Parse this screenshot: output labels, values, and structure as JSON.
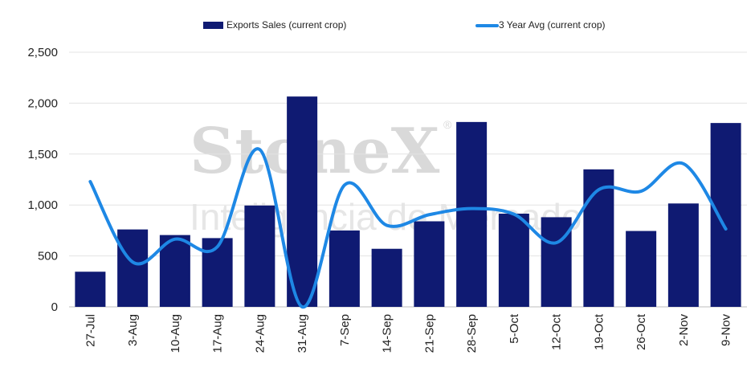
{
  "chart_data": {
    "type": "bar",
    "categories": [
      "27-Jul",
      "3-Aug",
      "10-Aug",
      "17-Aug",
      "24-Aug",
      "31-Aug",
      "7-Sep",
      "14-Sep",
      "21-Sep",
      "28-Sep",
      "5-Oct",
      "12-Oct",
      "19-Oct",
      "26-Oct",
      "2-Nov",
      "9-Nov"
    ],
    "series": [
      {
        "name": "Exports Sales (current crop)",
        "type": "bar",
        "color": "#0f1a72",
        "values": [
          345,
          760,
          705,
          675,
          995,
          2065,
          750,
          570,
          840,
          1815,
          915,
          880,
          1350,
          745,
          1015,
          1805
        ]
      },
      {
        "name": "3 Year Avg (current crop)",
        "type": "line",
        "color": "#1e88e5",
        "values": [
          1230,
          440,
          665,
          590,
          1545,
          0,
          1195,
          800,
          905,
          965,
          910,
          630,
          1150,
          1135,
          1405,
          765
        ]
      }
    ],
    "ylim": [
      0,
      2500
    ],
    "yticks": [
      "0",
      "500",
      "1,000",
      "1,500",
      "2,000",
      "2,500"
    ],
    "ytick_values": [
      0,
      500,
      1000,
      1500,
      2000,
      2500
    ],
    "grid": true,
    "legend": "top-center",
    "title": "",
    "xlabel": "",
    "ylabel": ""
  },
  "watermark": {
    "brand": "StoneX",
    "registered": "®",
    "sub": "Inteligência de Mercado"
  }
}
